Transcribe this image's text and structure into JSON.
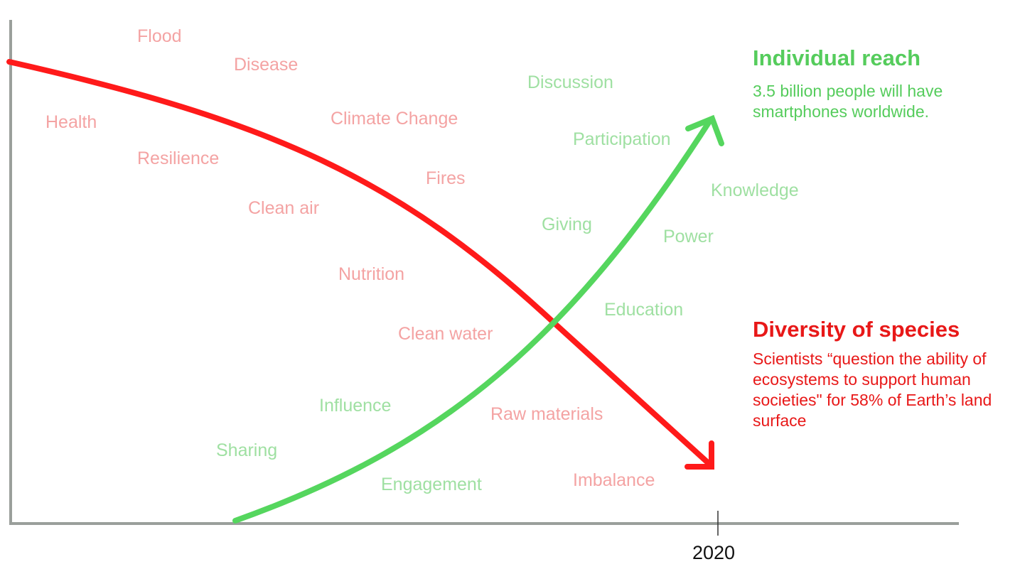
{
  "colors": {
    "decline_curve": "#ff1a1a",
    "growth_curve": "#55d65e",
    "decline_words": "#f4a3a3",
    "growth_words": "#9fe0a2",
    "decline_text": "#e81818",
    "growth_text": "#55cc5c",
    "axis": "#9a9f9b"
  },
  "axis": {
    "year_label": "2020"
  },
  "decline_words": [
    "Flood",
    "Disease",
    "Health",
    "Climate Change",
    "Resilience",
    "Fires",
    "Clean air",
    "Nutrition",
    "Clean water",
    "Raw materials",
    "Imbalance"
  ],
  "growth_words": [
    "Discussion",
    "Participation",
    "Knowledge",
    "Giving",
    "Power",
    "Education",
    "Influence",
    "Sharing",
    "Engagement"
  ],
  "growth_annotation": {
    "title": "Individual reach",
    "text": "3.5 billion people will have smartphones worldwide."
  },
  "decline_annotation": {
    "title": "Diversity of species",
    "text": "Scientists “question the ability of ecosystems to support human societies\" for 58% of Earth’s land surface"
  }
}
